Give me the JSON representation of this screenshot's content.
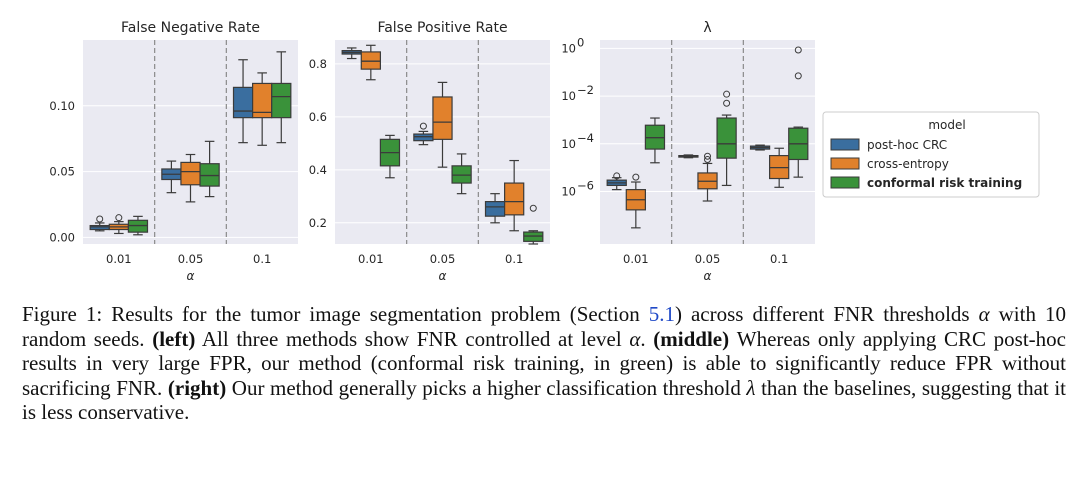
{
  "legend": {
    "title": "model",
    "items": [
      {
        "label": "post-hoc CRC",
        "color": "#3a6e9f",
        "bold": false
      },
      {
        "label": "cross-entropy",
        "color": "#e1812c",
        "bold": false
      },
      {
        "label": "conformal risk training",
        "color": "#3a923a",
        "bold": true
      }
    ]
  },
  "chart_data": [
    {
      "type": "box",
      "title": "False Negative Rate",
      "xlabel": "α",
      "scale": "linear",
      "ylim": [
        -0.005,
        0.15
      ],
      "yticks": [
        0.0,
        0.05,
        0.1
      ],
      "ytick_labels": [
        "0.00",
        "0.05",
        "0.10"
      ],
      "categories": [
        "0.01",
        "0.05",
        "0.1"
      ],
      "series": [
        {
          "name": "post-hoc CRC",
          "boxes": [
            {
              "whislo": 0.005,
              "q1": 0.006,
              "med": 0.008,
              "q3": 0.009,
              "whishi": 0.011,
              "fliers": [
                0.014
              ]
            },
            {
              "whislo": 0.034,
              "q1": 0.044,
              "med": 0.048,
              "q3": 0.052,
              "whishi": 0.058,
              "fliers": []
            },
            {
              "whislo": 0.072,
              "q1": 0.091,
              "med": 0.096,
              "q3": 0.114,
              "whishi": 0.135,
              "fliers": []
            }
          ]
        },
        {
          "name": "cross-entropy",
          "boxes": [
            {
              "whislo": 0.003,
              "q1": 0.006,
              "med": 0.008,
              "q3": 0.01,
              "whishi": 0.012,
              "fliers": [
                0.015
              ]
            },
            {
              "whislo": 0.027,
              "q1": 0.04,
              "med": 0.05,
              "q3": 0.057,
              "whishi": 0.063,
              "fliers": []
            },
            {
              "whislo": 0.07,
              "q1": 0.091,
              "med": 0.095,
              "q3": 0.117,
              "whishi": 0.125,
              "fliers": []
            }
          ]
        },
        {
          "name": "conformal risk training",
          "boxes": [
            {
              "whislo": 0.002,
              "q1": 0.004,
              "med": 0.009,
              "q3": 0.013,
              "whishi": 0.016,
              "fliers": []
            },
            {
              "whislo": 0.031,
              "q1": 0.039,
              "med": 0.047,
              "q3": 0.056,
              "whishi": 0.073,
              "fliers": []
            },
            {
              "whislo": 0.072,
              "q1": 0.091,
              "med": 0.107,
              "q3": 0.117,
              "whishi": 0.141,
              "fliers": []
            }
          ]
        }
      ]
    },
    {
      "type": "box",
      "title": "False Positive Rate",
      "xlabel": "α",
      "scale": "linear",
      "ylim": [
        0.12,
        0.89
      ],
      "yticks": [
        0.2,
        0.4,
        0.6,
        0.8
      ],
      "ytick_labels": [
        "0.2",
        "0.4",
        "0.6",
        "0.8"
      ],
      "categories": [
        "0.01",
        "0.05",
        "0.1"
      ],
      "series": [
        {
          "name": "post-hoc CRC",
          "boxes": [
            {
              "whislo": 0.82,
              "q1": 0.837,
              "med": 0.843,
              "q3": 0.85,
              "whishi": 0.86,
              "fliers": []
            },
            {
              "whislo": 0.495,
              "q1": 0.51,
              "med": 0.525,
              "q3": 0.535,
              "whishi": 0.545,
              "fliers": [
                0.565
              ]
            },
            {
              "whislo": 0.2,
              "q1": 0.225,
              "med": 0.26,
              "q3": 0.28,
              "whishi": 0.31,
              "fliers": []
            }
          ]
        },
        {
          "name": "cross-entropy",
          "boxes": [
            {
              "whislo": 0.74,
              "q1": 0.78,
              "med": 0.81,
              "q3": 0.845,
              "whishi": 0.87,
              "fliers": []
            },
            {
              "whislo": 0.41,
              "q1": 0.515,
              "med": 0.58,
              "q3": 0.675,
              "whishi": 0.73,
              "fliers": []
            },
            {
              "whislo": 0.17,
              "q1": 0.23,
              "med": 0.28,
              "q3": 0.35,
              "whishi": 0.435,
              "fliers": []
            }
          ]
        },
        {
          "name": "conformal risk training",
          "boxes": [
            {
              "whislo": 0.37,
              "q1": 0.415,
              "med": 0.465,
              "q3": 0.515,
              "whishi": 0.53,
              "fliers": []
            },
            {
              "whislo": 0.31,
              "q1": 0.35,
              "med": 0.38,
              "q3": 0.415,
              "whishi": 0.46,
              "fliers": []
            },
            {
              "whislo": 0.12,
              "q1": 0.13,
              "med": 0.15,
              "q3": 0.165,
              "whishi": 0.17,
              "fliers": [
                0.255
              ]
            }
          ]
        }
      ]
    },
    {
      "type": "box",
      "title": "λ",
      "xlabel": "α",
      "scale": "log",
      "ylim_log10": [
        -8.2,
        0.35
      ],
      "yticks_log10": [
        -6,
        -4,
        -2,
        0
      ],
      "ytick_labels": [
        {
          "base": "10",
          "exp": "−6"
        },
        {
          "base": "10",
          "exp": "−4"
        },
        {
          "base": "10",
          "exp": "−2"
        },
        {
          "base": "10",
          "exp": "0"
        }
      ],
      "categories": [
        "0.01",
        "0.05",
        "0.1"
      ],
      "series": [
        {
          "name": "post-hoc CRC",
          "boxes": [
            {
              "whislo": 1.2e-06,
              "q1": 1.8e-06,
              "med": 2.3e-06,
              "q3": 3e-06,
              "whishi": 3.8e-06,
              "fliers": [
                4.5e-06
              ]
            },
            {
              "whislo": 2.6e-05,
              "q1": 2.8e-05,
              "med": 3e-05,
              "q3": 3.2e-05,
              "whishi": 3.4e-05,
              "fliers": []
            },
            {
              "whislo": 5.5e-05,
              "q1": 6e-05,
              "med": 7e-05,
              "q3": 8e-05,
              "whishi": 8.8e-05,
              "fliers": []
            }
          ]
        },
        {
          "name": "cross-entropy",
          "boxes": [
            {
              "whislo": 3e-08,
              "q1": 1.7e-07,
              "med": 4.5e-07,
              "q3": 1.2e-06,
              "whishi": 2.5e-06,
              "fliers": [
                4e-06
              ]
            },
            {
              "whislo": 4e-07,
              "q1": 1.3e-06,
              "med": 2.7e-06,
              "q3": 6e-06,
              "whishi": 1.5e-05,
              "fliers": [
                2.2e-05,
                3e-05
              ]
            },
            {
              "whislo": 1.5e-06,
              "q1": 3.5e-06,
              "med": 1e-05,
              "q3": 3.2e-05,
              "whishi": 6.5e-05,
              "fliers": []
            }
          ]
        },
        {
          "name": "conformal risk training",
          "boxes": [
            {
              "whislo": 1.6e-05,
              "q1": 6e-05,
              "med": 0.00018,
              "q3": 0.0006,
              "whishi": 0.0012,
              "fliers": []
            },
            {
              "whislo": 1.8e-06,
              "q1": 2.5e-05,
              "med": 0.0001,
              "q3": 0.0012,
              "whishi": 0.0016,
              "fliers": [
                0.005,
                0.012
              ]
            },
            {
              "whislo": 4e-06,
              "q1": 2.2e-05,
              "med": 0.0001,
              "q3": 0.00045,
              "whishi": 0.0005,
              "fliers": [
                0.07,
                0.85
              ]
            }
          ]
        }
      ]
    }
  ],
  "caption": {
    "prefix": "Figure 1: Results for the tumor image segmentation problem (Section ",
    "section_ref": "5.1",
    "p1": ") across different FNR thresholds ",
    "alpha": "α",
    "p2": " with 10 random seeds. ",
    "left_label": "(left)",
    "left_text": " All three methods show FNR controlled at level ",
    "alpha2": "α",
    "p3": ". ",
    "middle_label": "(middle)",
    "middle_text": " Whereas only applying CRC post-hoc results in very large FPR, our method (conformal risk training, in green) is able to significantly reduce FPR without sacrificing FNR. ",
    "right_label": "(right)",
    "right_text": " Our method generally picks a higher classification threshold ",
    "lambda": "λ",
    "end": " than the baselines, suggesting that it is less conservative."
  }
}
